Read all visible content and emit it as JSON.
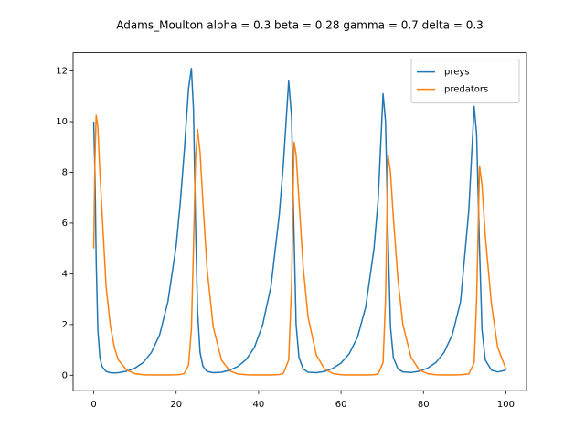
{
  "chart_data": {
    "type": "line",
    "title": "Adams_Moulton alpha = 0.3 beta = 0.28 gamma = 0.7 delta = 0.3",
    "x": [
      0,
      0.3,
      0.6,
      1,
      1.5,
      2,
      3,
      4,
      5,
      6,
      8,
      10,
      12,
      14,
      16,
      18,
      20,
      21,
      22,
      23,
      23.7,
      24.2,
      24.7,
      25.2,
      25.8,
      26.5,
      27.5,
      29,
      31,
      33,
      35,
      37,
      39,
      41,
      43,
      45,
      46,
      47.3,
      48,
      48.6,
      49.1,
      49.8,
      50.8,
      52,
      54,
      56,
      58,
      60,
      62,
      64,
      66,
      68,
      69,
      70.2,
      70.8,
      71.4,
      72,
      72.7,
      73.8,
      75,
      77,
      79,
      81,
      83,
      85,
      87,
      89,
      91,
      92.3,
      92.9,
      93.6,
      94.2,
      95,
      96.5,
      98,
      100
    ],
    "series": [
      {
        "name": "preys",
        "color": "#1f77b4",
        "values": [
          10,
          8,
          4.5,
          1.8,
          0.7,
          0.35,
          0.15,
          0.1,
          0.09,
          0.1,
          0.16,
          0.28,
          0.5,
          0.9,
          1.6,
          2.9,
          5.1,
          6.8,
          8.9,
          11.3,
          12.1,
          10.5,
          6,
          2.5,
          0.9,
          0.35,
          0.15,
          0.1,
          0.12,
          0.2,
          0.35,
          0.62,
          1.1,
          2.0,
          3.5,
          6.3,
          8.3,
          11.6,
          10.2,
          5.5,
          2.0,
          0.7,
          0.25,
          0.12,
          0.1,
          0.15,
          0.27,
          0.48,
          0.85,
          1.5,
          2.7,
          5.0,
          6.9,
          11.1,
          10.0,
          5.5,
          1.9,
          0.7,
          0.25,
          0.13,
          0.11,
          0.16,
          0.28,
          0.5,
          0.9,
          1.6,
          2.9,
          6.5,
          10.6,
          9.5,
          5.0,
          1.8,
          0.6,
          0.2,
          0.13,
          0.2
        ]
      },
      {
        "name": "predators",
        "color": "#ff7f0e",
        "values": [
          5,
          8.5,
          10.25,
          9.8,
          8.0,
          6.5,
          3.5,
          2.0,
          1.1,
          0.6,
          0.2,
          0.06,
          0.02,
          0.01,
          0.01,
          0.01,
          0.02,
          0.03,
          0.07,
          0.4,
          1.8,
          5,
          8.5,
          9.7,
          8.8,
          6.8,
          4.2,
          1.9,
          0.6,
          0.17,
          0.05,
          0.02,
          0.01,
          0.01,
          0.01,
          0.03,
          0.07,
          0.6,
          3.5,
          9.2,
          8.7,
          6.9,
          4.3,
          2.3,
          0.8,
          0.25,
          0.07,
          0.02,
          0.01,
          0.01,
          0.01,
          0.02,
          0.05,
          0.5,
          3.0,
          8.7,
          8.0,
          6.2,
          3.8,
          2.0,
          0.7,
          0.2,
          0.06,
          0.02,
          0.01,
          0.01,
          0.02,
          0.05,
          0.5,
          3.0,
          8.25,
          7.5,
          5.5,
          2.8,
          1.1,
          0.25
        ]
      }
    ],
    "xlim": [
      -5,
      105
    ],
    "ylim": [
      -0.61,
      12.72
    ],
    "xticks": [
      0,
      20,
      40,
      60,
      80,
      100
    ],
    "yticks": [
      0,
      2,
      4,
      6,
      8,
      10,
      12
    ],
    "legend": "upper right"
  }
}
